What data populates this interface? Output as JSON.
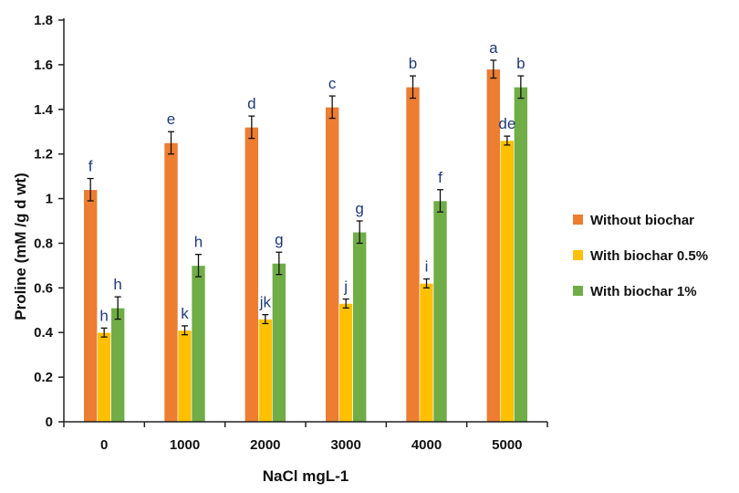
{
  "chart_data": {
    "type": "bar",
    "title": "",
    "xlabel": "NaCl mgL-1",
    "ylabel": "Proline  (mM /g d wt)",
    "categories": [
      "0",
      "1000",
      "2000",
      "3000",
      "4000",
      "5000"
    ],
    "ylim": [
      0,
      1.8
    ],
    "yticks": [
      "0",
      "0.2",
      "0.4",
      "0.6",
      "0.8",
      "1",
      "1.2",
      "1.4",
      "1.6",
      "1.8"
    ],
    "grid": false,
    "legend_position": "right",
    "series": [
      {
        "name": "Without biochar",
        "color": "#ed7d31",
        "values": [
          1.04,
          1.25,
          1.32,
          1.41,
          1.5,
          1.58
        ],
        "errors": [
          0.05,
          0.05,
          0.05,
          0.05,
          0.05,
          0.04
        ],
        "letters": [
          "f",
          "e",
          "d",
          "c",
          "b",
          "a"
        ]
      },
      {
        "name": "With biochar 0.5%",
        "color": "#ffc000",
        "values": [
          0.4,
          0.41,
          0.46,
          0.53,
          0.62,
          1.26
        ],
        "errors": [
          0.02,
          0.02,
          0.02,
          0.02,
          0.02,
          0.02
        ],
        "letters": [
          "h",
          "k",
          "jk",
          "j",
          "i",
          "de"
        ]
      },
      {
        "name": "With biochar 1%",
        "color": "#70ad47",
        "values": [
          0.51,
          0.7,
          0.71,
          0.85,
          0.99,
          1.5
        ],
        "errors": [
          0.05,
          0.05,
          0.05,
          0.05,
          0.05,
          0.05
        ],
        "letters": [
          "h",
          "h",
          "g",
          "g",
          "f",
          "b"
        ]
      }
    ]
  }
}
